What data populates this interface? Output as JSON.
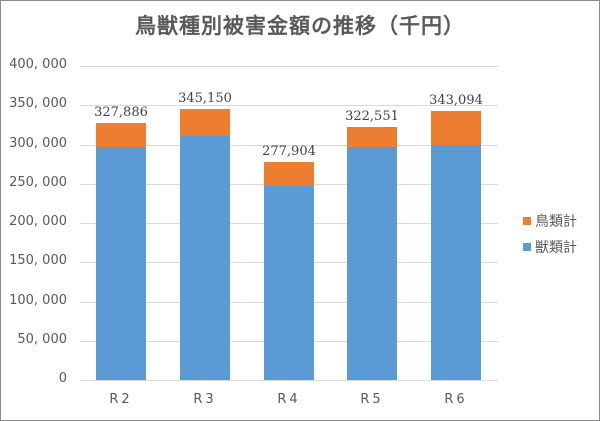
{
  "chart_data": {
    "type": "bar",
    "stacked": true,
    "title": "鳥獣種別被害金額の推移（千円）",
    "xlabel": "",
    "ylabel": "",
    "categories": [
      "R2",
      "R3",
      "R4",
      "R5",
      "R6"
    ],
    "series": [
      {
        "name": "獣類計",
        "color": "#5b9bd5",
        "values": [
          296800,
          310800,
          247100,
          296800,
          299400
        ]
      },
      {
        "name": "鳥類計",
        "color": "#ed7d31",
        "values": [
          31086,
          34350,
          30804,
          25751,
          43694
        ]
      }
    ],
    "totals": [
      327886,
      345150,
      277904,
      322551,
      343094
    ],
    "total_labels": [
      "327,886",
      "345,150",
      "277,904",
      "322,551",
      "343,094"
    ],
    "ylim": [
      0,
      400000
    ],
    "yticks": [
      0,
      50000,
      100000,
      150000,
      200000,
      250000,
      300000,
      350000,
      400000
    ],
    "ytick_labels": [
      "0",
      "50, 000",
      "100, 000",
      "150, 000",
      "200, 000",
      "250, 000",
      "300, 000",
      "350, 000",
      "400, 000"
    ],
    "grid": true,
    "legend_position": "right",
    "legend": [
      "鳥類計",
      "獣類計"
    ]
  },
  "title": "鳥獣種別被害金額の推移（千円）",
  "legend": [
    {
      "label": "鳥類計",
      "color": "#ed7d31"
    },
    {
      "label": "獣類計",
      "color": "#5b9bd5"
    }
  ]
}
